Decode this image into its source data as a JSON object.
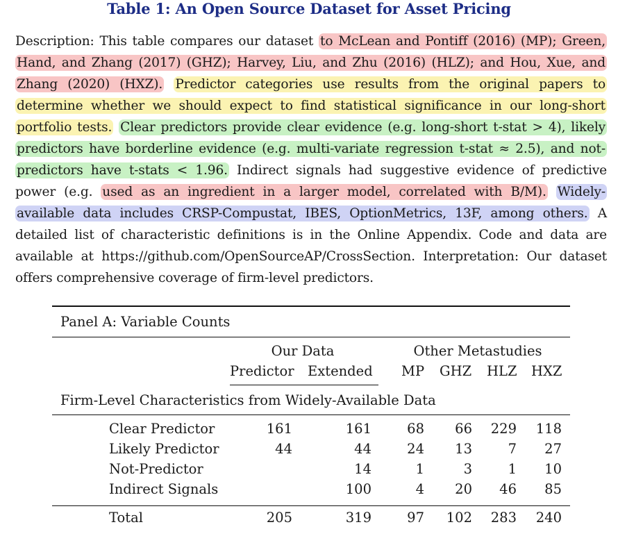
{
  "title": "Table 1: An Open Source Dataset for Asset Pricing",
  "description": {
    "lead": "Description: This table compares our dataset ",
    "red1": "to McLean and Pontiff (2016) (MP); Green, Hand, and Zhang (2017) (GHZ); Harvey, Liu, and Zhu (2016) (HLZ); and Hou, Xue, and Zhang (2020) (HXZ).",
    "gap1": " ",
    "yellow1": "Predictor categories use results from the original papers to determine whether we should expect to find statistical significance in our long-short portfolio tests.",
    "gap2": " ",
    "green1": "Clear predictors provide clear evidence (e.g.  long-short t-stat > 4), likely predictors have borderline evidence (e.g.  multi-variate regression t-stat ≈ 2.5), and not-predictors have t-stats < 1.96.",
    "mid": " Indirect signals had suggestive evidence of predictive power (e.g. ",
    "red2": "used as an ingredient in a larger model, correlated with B/M).",
    "gap3": " ",
    "blue1": "Widely-available data includes CRSP-Compustat, IBES, OptionMetrics, 13F, among others.",
    "tail": " A detailed list of characteristic definitions is in the Online Appendix. Code and data are available at https://github.com/OpenSourceAP/CrossSection.  Interpretation: Our dataset offers comprehensive coverage of firm-level predictors."
  },
  "highlight_colors": {
    "red": "#f8c5c5",
    "yellow": "#fbf3b2",
    "green": "#c8f1c4",
    "blue": "#cfd3f5",
    "title": "#1d2d86"
  },
  "table": {
    "panel_title": "Panel A: Variable Counts",
    "group_headers": {
      "ours": "Our Data",
      "others": "Other Metastudies"
    },
    "columns": [
      "Predictor",
      "Extended",
      "MP",
      "GHZ",
      "HLZ",
      "HXZ"
    ],
    "section_title": "Firm-Level Characteristics from Widely-Available Data",
    "rows": [
      {
        "label": "Clear Predictor",
        "values": [
          "161",
          "161",
          "68",
          "66",
          "229",
          "118"
        ]
      },
      {
        "label": "Likely Predictor",
        "values": [
          "44",
          "44",
          "24",
          "13",
          "7",
          "27"
        ]
      },
      {
        "label": "Not-Predictor",
        "values": [
          "",
          "14",
          "1",
          "3",
          "1",
          "10"
        ]
      },
      {
        "label": "Indirect Signals",
        "values": [
          "",
          "100",
          "4",
          "20",
          "46",
          "85"
        ]
      }
    ],
    "total": {
      "label": "Total",
      "values": [
        "205",
        "319",
        "97",
        "102",
        "283",
        "240"
      ]
    }
  }
}
